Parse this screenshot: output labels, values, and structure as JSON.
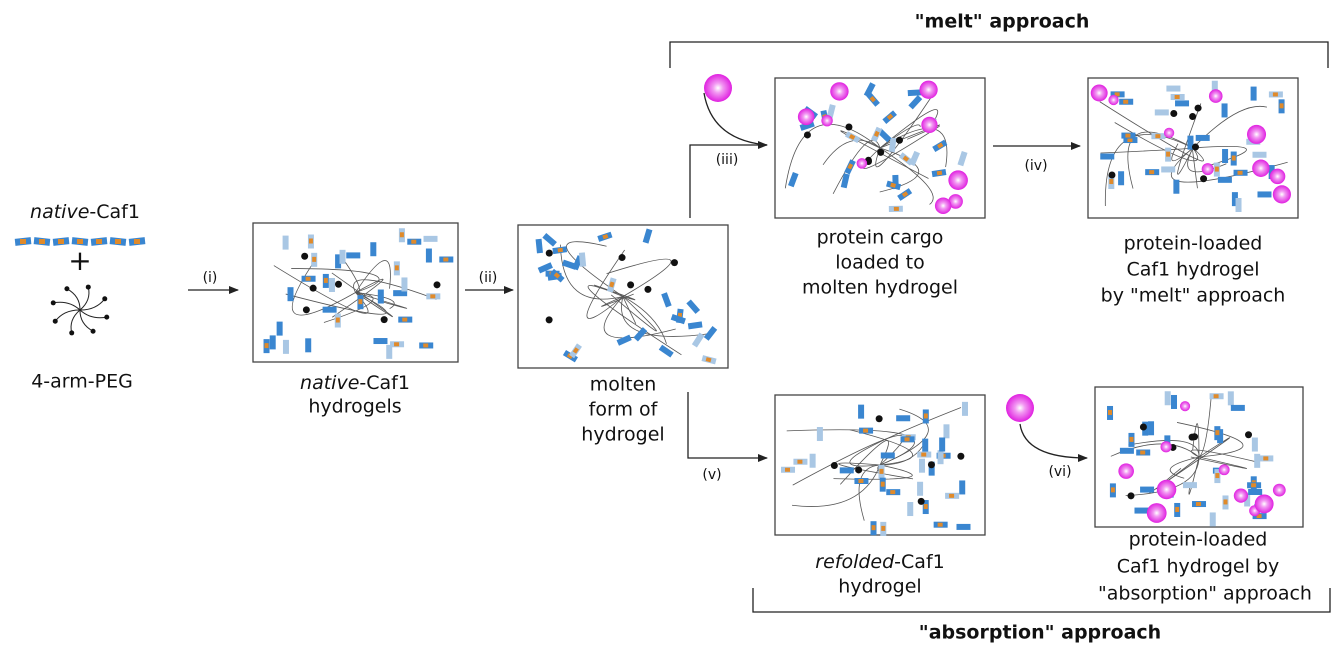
{
  "start": {
    "caf1": {
      "italic": "native",
      "rest": "-Caf1"
    },
    "plus": "+",
    "peg": "4-arm-PEG"
  },
  "steps": [
    "(i)",
    "(ii)",
    "(iii)",
    "(iv)",
    "(v)",
    "(vi)"
  ],
  "stages": [
    {
      "lines": [
        {
          "italic": "native",
          "rest": "-Caf1"
        },
        "hydrogels"
      ]
    },
    {
      "lines": [
        "molten",
        "form of",
        "hydrogel"
      ]
    },
    {
      "lines": [
        "protein cargo",
        "loaded to",
        "molten hydrogel"
      ]
    },
    {
      "lines": [
        "protein-loaded",
        "Caf1 hydrogel",
        "by \"melt\" approach"
      ]
    },
    {
      "lines": [
        {
          "italic": "refolded",
          "rest": "-Caf1"
        },
        "hydrogel"
      ]
    },
    {
      "lines": [
        "protein-loaded",
        "Caf1 hydrogel by",
        "\"absorption\" approach"
      ]
    }
  ],
  "approaches": {
    "melt": "\"melt\" approach",
    "absorption": "\"absorption\" approach"
  }
}
